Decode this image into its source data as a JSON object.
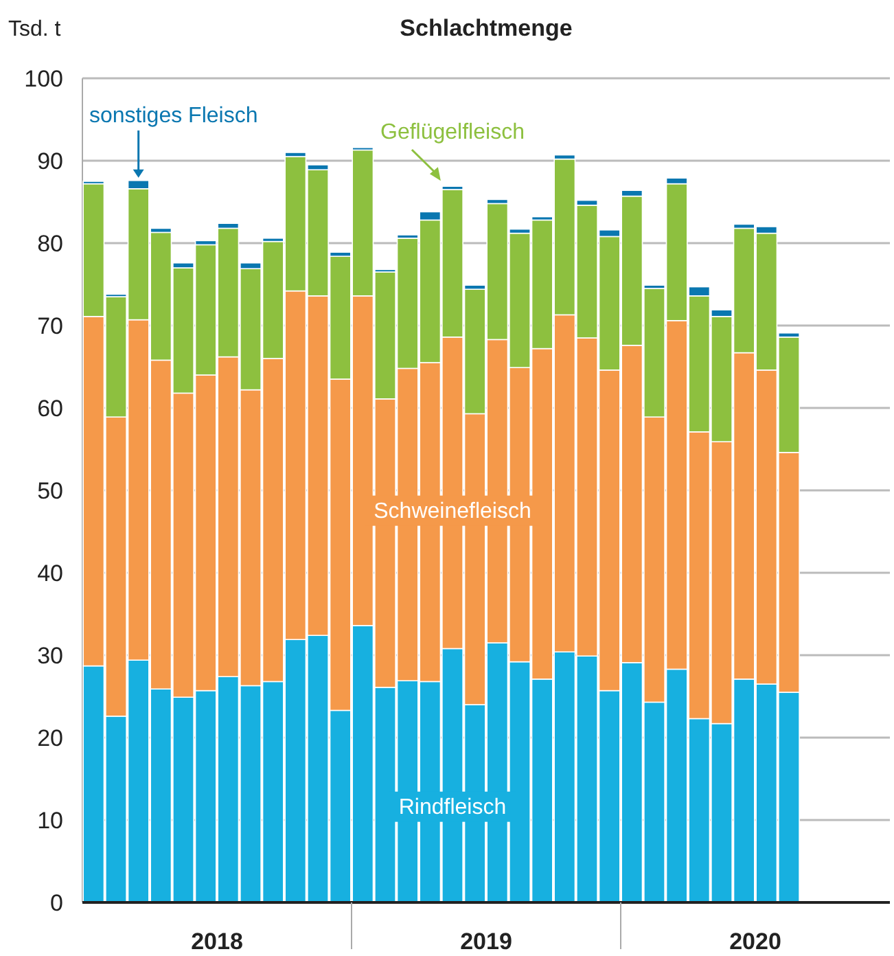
{
  "chart_data": {
    "type": "bar",
    "stacked": true,
    "title": "Schlachtmenge",
    "ylabel": "Tsd. t",
    "categories": [
      null,
      null,
      null,
      null,
      null,
      null,
      null,
      null,
      null,
      null,
      null,
      null,
      null,
      null,
      null,
      null,
      null,
      null,
      null,
      null,
      null,
      null,
      null,
      null,
      null,
      null,
      null,
      null,
      null,
      null,
      null,
      null,
      null,
      null,
      null,
      null
    ],
    "series": [
      {
        "name": "Rindfleisch",
        "color": "#17b0e0",
        "values": [
          28.7,
          22.6,
          29.4,
          25.9,
          24.9,
          25.7,
          27.4,
          26.3,
          26.8,
          31.9,
          32.4,
          23.3,
          33.6,
          26.1,
          26.9,
          26.8,
          30.8,
          24.0,
          31.5,
          29.2,
          27.1,
          30.4,
          29.9,
          25.7,
          29.1,
          24.3,
          28.3,
          22.3,
          21.7,
          27.1,
          26.5,
          25.5,
          null,
          null,
          null,
          null
        ]
      },
      {
        "name": "Schweinefleisch",
        "color": "#f5994a",
        "values": [
          42.4,
          36.3,
          41.3,
          39.9,
          36.9,
          38.3,
          38.8,
          35.9,
          39.2,
          42.3,
          41.2,
          40.2,
          40.0,
          35.0,
          37.9,
          38.7,
          37.8,
          35.3,
          36.8,
          35.7,
          40.1,
          40.9,
          38.6,
          38.9,
          38.5,
          34.6,
          42.3,
          34.8,
          34.2,
          39.6,
          38.1,
          29.1,
          null,
          null,
          null,
          null
        ]
      },
      {
        "name": "Geflügelfleisch",
        "color": "#8dc03f",
        "values": [
          16.1,
          14.6,
          15.9,
          15.5,
          15.2,
          15.8,
          15.6,
          14.7,
          14.2,
          16.3,
          15.3,
          14.9,
          17.7,
          15.4,
          15.8,
          17.3,
          17.9,
          15.1,
          16.5,
          16.3,
          15.6,
          18.9,
          16.1,
          16.2,
          18.1,
          15.6,
          16.6,
          16.5,
          15.2,
          15.1,
          16.6,
          14.0,
          null,
          null,
          null,
          null
        ]
      },
      {
        "name": "sonstiges Fleisch",
        "color": "#0a77b0",
        "values": [
          0.3,
          0.3,
          1.0,
          0.5,
          0.6,
          0.5,
          0.6,
          0.7,
          0.4,
          0.5,
          0.6,
          0.5,
          0.3,
          0.3,
          0.4,
          1.0,
          0.4,
          0.5,
          0.5,
          0.5,
          0.4,
          0.5,
          0.6,
          0.8,
          0.7,
          0.4,
          0.7,
          1.1,
          0.8,
          0.5,
          0.8,
          0.5,
          null,
          null,
          null,
          null
        ]
      }
    ],
    "ylim": [
      0,
      100
    ],
    "yticks": [
      0,
      10,
      20,
      30,
      40,
      50,
      60,
      70,
      80,
      90,
      100
    ],
    "grid": "y",
    "annotations": [
      "2018",
      "2019",
      "2020"
    ]
  }
}
